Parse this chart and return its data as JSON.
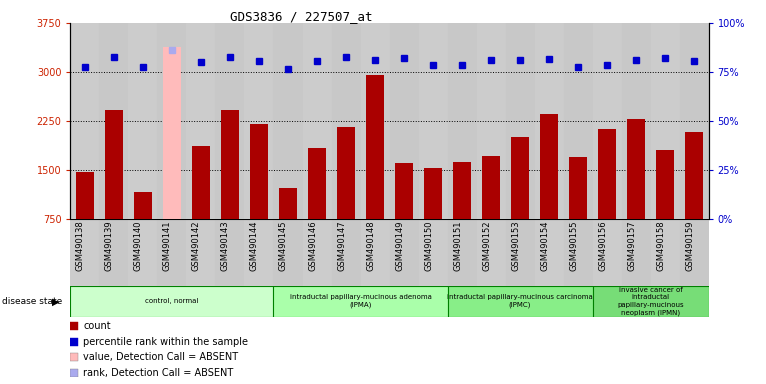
{
  "title": "GDS3836 / 227507_at",
  "samples": [
    "GSM490138",
    "GSM490139",
    "GSM490140",
    "GSM490141",
    "GSM490142",
    "GSM490143",
    "GSM490144",
    "GSM490145",
    "GSM490146",
    "GSM490147",
    "GSM490148",
    "GSM490149",
    "GSM490150",
    "GSM490151",
    "GSM490152",
    "GSM490153",
    "GSM490154",
    "GSM490155",
    "GSM490156",
    "GSM490157",
    "GSM490158",
    "GSM490159"
  ],
  "counts": [
    1470,
    2420,
    1160,
    3380,
    1870,
    2420,
    2200,
    1230,
    1840,
    2160,
    2960,
    1600,
    1530,
    1620,
    1720,
    2000,
    2350,
    1700,
    2130,
    2280,
    1800,
    2080
  ],
  "percentile_ranks": [
    3080,
    3230,
    3080,
    3340,
    3150,
    3230,
    3170,
    3050,
    3170,
    3230,
    3190,
    3220,
    3110,
    3110,
    3180,
    3190,
    3200,
    3080,
    3110,
    3190,
    3210,
    3170
  ],
  "absent_idx": [
    3
  ],
  "bar_color_normal": "#aa0000",
  "bar_color_absent": "#ffbbbb",
  "rank_color_normal": "#0000cc",
  "rank_color_absent": "#aaaaee",
  "ylim_left": [
    750,
    3750
  ],
  "ylim_right": [
    0,
    100
  ],
  "yticks_left": [
    750,
    1500,
    2250,
    3000,
    3750
  ],
  "yticks_right": [
    0,
    25,
    50,
    75,
    100
  ],
  "disease_groups": [
    {
      "label": "control, normal",
      "start": 0,
      "end": 7,
      "color": "#ccffcc"
    },
    {
      "label": "intraductal papillary-mucinous adenoma\n(IPMA)",
      "start": 7,
      "end": 13,
      "color": "#aaffaa"
    },
    {
      "label": "intraductal papillary-mucinous carcinoma\n(IPMC)",
      "start": 13,
      "end": 18,
      "color": "#88ee88"
    },
    {
      "label": "invasive cancer of\nintraductal\npapillary-mucinous\nneoplasm (IPMN)",
      "start": 18,
      "end": 22,
      "color": "#77dd77"
    }
  ],
  "legend_items": [
    {
      "label": "count",
      "color": "#aa0000"
    },
    {
      "label": "percentile rank within the sample",
      "color": "#0000cc"
    },
    {
      "label": "value, Detection Call = ABSENT",
      "color": "#ffbbbb"
    },
    {
      "label": "rank, Detection Call = ABSENT",
      "color": "#aaaaee"
    }
  ],
  "bg_color": "#dddddd",
  "col_colors": [
    "#cccccc",
    "#bbbbbb"
  ],
  "title_fontsize": 9,
  "tick_fontsize": 7,
  "bar_width": 0.65,
  "grid_color": "#000000",
  "right_axis_color": "#0000cc",
  "left_axis_color": "#cc2200"
}
